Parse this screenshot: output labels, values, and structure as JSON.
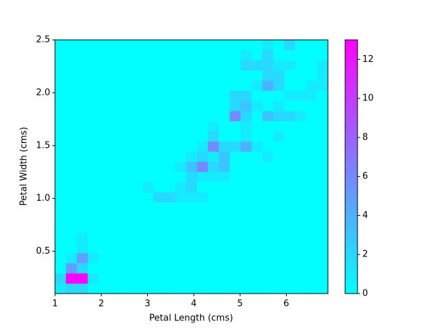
{
  "chart_data": {
    "type": "hist2d",
    "xlabel": "Petal Length (cms)",
    "ylabel": "Petal Width (cms)",
    "x_bins": [
      1,
      1.236,
      1.472,
      1.708,
      1.944,
      2.18,
      2.416,
      2.652,
      2.888,
      3.124,
      3.36,
      3.596,
      3.832,
      4.068,
      4.304,
      4.54,
      4.776,
      5.012,
      5.248,
      5.484,
      5.72,
      5.956,
      6.192,
      6.428,
      6.664,
      6.9
    ],
    "y_bins": [
      0.1,
      0.196,
      0.292,
      0.388,
      0.484,
      0.58,
      0.676,
      0.772,
      0.868,
      0.964,
      1.06,
      1.156,
      1.252,
      1.348,
      1.444,
      1.54,
      1.636,
      1.732,
      1.828,
      1.924,
      2.02,
      2.116,
      2.212,
      2.308,
      2.404,
      2.5
    ],
    "counts": [
      [
        1,
        2,
        2,
        0,
        0,
        0,
        0,
        0,
        0,
        0,
        0,
        0,
        0,
        0,
        0,
        0,
        0,
        0,
        0,
        0,
        0,
        0,
        0,
        0,
        0
      ],
      [
        2,
        13,
        13,
        1,
        0,
        0,
        0,
        0,
        0,
        0,
        0,
        0,
        0,
        0,
        0,
        0,
        0,
        0,
        0,
        0,
        0,
        0,
        0,
        0,
        0
      ],
      [
        0,
        5,
        2,
        0,
        0,
        0,
        0,
        0,
        0,
        0,
        0,
        0,
        0,
        0,
        0,
        0,
        0,
        0,
        0,
        0,
        0,
        0,
        0,
        0,
        0
      ],
      [
        0,
        1,
        5,
        1,
        0,
        0,
        0,
        0,
        0,
        0,
        0,
        0,
        0,
        0,
        0,
        0,
        0,
        0,
        0,
        0,
        0,
        0,
        0,
        0,
        0
      ],
      [
        0,
        0,
        1,
        0,
        0,
        0,
        0,
        0,
        0,
        0,
        0,
        0,
        0,
        0,
        0,
        0,
        0,
        0,
        0,
        0,
        0,
        0,
        0,
        0,
        0
      ],
      [
        0,
        0,
        1,
        0,
        0,
        0,
        0,
        0,
        0,
        0,
        0,
        0,
        0,
        0,
        0,
        0,
        0,
        0,
        0,
        0,
        0,
        0,
        0,
        0,
        0
      ],
      [
        0,
        0,
        0,
        0,
        0,
        0,
        0,
        0,
        0,
        0,
        0,
        0,
        0,
        0,
        0,
        0,
        0,
        0,
        0,
        0,
        0,
        0,
        0,
        0,
        0
      ],
      [
        0,
        0,
        0,
        0,
        0,
        0,
        0,
        0,
        0,
        0,
        0,
        0,
        0,
        0,
        0,
        0,
        0,
        0,
        0,
        0,
        0,
        0,
        0,
        0,
        0
      ],
      [
        0,
        0,
        0,
        0,
        0,
        0,
        0,
        0,
        0,
        0,
        0,
        0,
        0,
        0,
        0,
        0,
        0,
        0,
        0,
        0,
        0,
        0,
        0,
        0,
        0
      ],
      [
        0,
        0,
        0,
        0,
        0,
        0,
        0,
        0,
        0,
        2,
        2,
        1,
        1,
        1,
        0,
        0,
        0,
        0,
        0,
        0,
        0,
        0,
        0,
        0,
        0
      ],
      [
        0,
        0,
        0,
        0,
        0,
        0,
        0,
        0,
        1,
        0,
        0,
        1,
        2,
        0,
        0,
        0,
        0,
        0,
        0,
        0,
        0,
        0,
        0,
        0,
        0
      ],
      [
        0,
        0,
        0,
        0,
        0,
        0,
        0,
        0,
        0,
        0,
        0,
        0,
        2,
        1,
        1,
        1,
        0,
        0,
        0,
        0,
        0,
        0,
        0,
        0,
        0
      ],
      [
        0,
        0,
        0,
        0,
        0,
        0,
        0,
        0,
        0,
        0,
        0,
        1,
        3,
        6,
        2,
        3,
        0,
        0,
        0,
        0,
        0,
        0,
        0,
        0,
        0
      ],
      [
        0,
        0,
        0,
        0,
        0,
        0,
        0,
        0,
        0,
        0,
        0,
        0,
        1,
        2,
        1,
        3,
        0,
        0,
        0,
        1,
        0,
        0,
        0,
        0,
        0
      ],
      [
        0,
        0,
        0,
        0,
        0,
        0,
        0,
        0,
        0,
        0,
        0,
        0,
        0,
        1,
        6,
        2,
        2,
        4,
        1,
        0,
        0,
        0,
        0,
        0,
        0
      ],
      [
        0,
        0,
        0,
        0,
        0,
        0,
        0,
        0,
        0,
        0,
        0,
        0,
        0,
        0,
        2,
        0,
        0,
        1,
        0,
        0,
        1,
        0,
        0,
        0,
        0
      ],
      [
        0,
        0,
        0,
        0,
        0,
        0,
        0,
        0,
        0,
        0,
        0,
        0,
        0,
        0,
        1,
        0,
        0,
        1,
        0,
        0,
        0,
        0,
        0,
        0,
        0
      ],
      [
        0,
        0,
        0,
        0,
        0,
        0,
        0,
        0,
        0,
        0,
        0,
        0,
        0,
        0,
        0,
        0,
        6,
        2,
        0,
        3,
        2,
        2,
        1,
        0,
        0
      ],
      [
        0,
        0,
        0,
        0,
        0,
        0,
        0,
        0,
        0,
        0,
        0,
        0,
        0,
        0,
        0,
        0,
        2,
        3,
        1,
        0,
        1,
        0,
        0,
        0,
        0
      ],
      [
        0,
        0,
        0,
        0,
        0,
        0,
        0,
        0,
        0,
        0,
        0,
        0,
        0,
        0,
        0,
        0,
        2,
        2,
        0,
        0,
        0,
        1,
        1,
        1,
        0
      ],
      [
        0,
        0,
        0,
        0,
        0,
        0,
        0,
        0,
        0,
        0,
        0,
        0,
        0,
        0,
        0,
        0,
        0,
        0,
        1,
        4,
        2,
        0,
        0,
        1,
        1
      ],
      [
        0,
        0,
        0,
        0,
        0,
        0,
        0,
        0,
        0,
        0,
        0,
        0,
        0,
        0,
        0,
        0,
        0,
        0,
        0,
        2,
        2,
        0,
        0,
        0,
        1
      ],
      [
        0,
        0,
        0,
        0,
        0,
        0,
        0,
        0,
        0,
        0,
        0,
        0,
        0,
        0,
        0,
        0,
        0,
        2,
        2,
        2,
        1,
        1,
        0,
        0,
        1
      ],
      [
        0,
        0,
        0,
        0,
        0,
        0,
        0,
        0,
        0,
        0,
        0,
        0,
        0,
        0,
        0,
        0,
        0,
        1,
        0,
        2,
        0,
        0,
        0,
        0,
        0
      ],
      [
        0,
        0,
        0,
        0,
        0,
        0,
        0,
        0,
        0,
        0,
        0,
        0,
        0,
        0,
        0,
        0,
        0,
        0,
        0,
        1,
        0,
        2,
        0,
        0,
        0
      ]
    ],
    "xlim": [
      1,
      6.9
    ],
    "xticks": [
      1,
      2,
      3,
      4,
      5,
      6
    ],
    "ylim": [
      0.1,
      2.5
    ],
    "yticks": [
      0.5,
      {
        "value": 1,
        "label": "1.0"
      },
      1.5,
      {
        "value": 2,
        "label": "2.0"
      },
      2.5
    ],
    "clim": [
      0,
      13
    ],
    "cticks": [
      0,
      2,
      4,
      6,
      8,
      10,
      12
    ]
  }
}
